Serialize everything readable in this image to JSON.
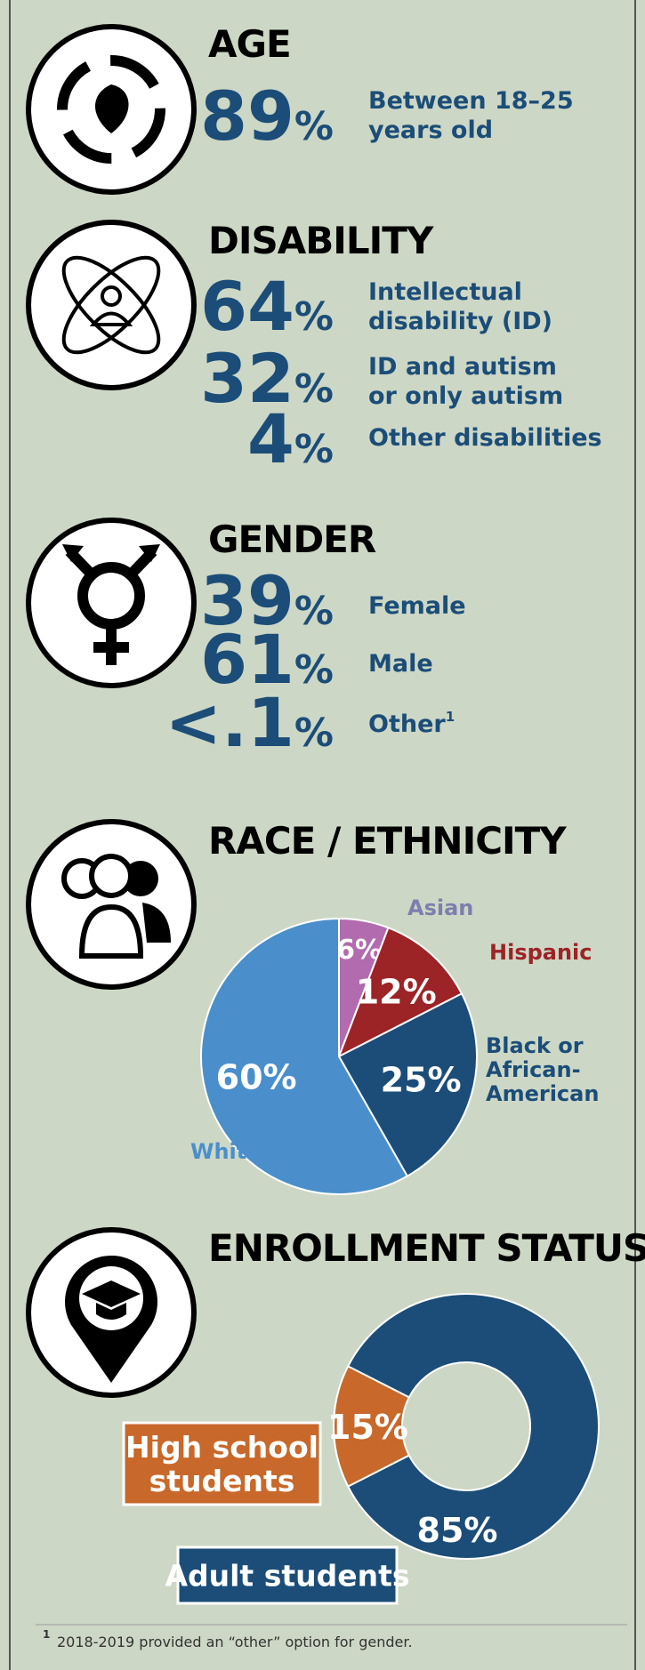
{
  "age": {
    "title": "AGE",
    "stats": [
      {
        "number": "89",
        "unit": "%",
        "label_lines": [
          "Between 18–25",
          "years old"
        ]
      }
    ]
  },
  "disability": {
    "title": "DISABILITY",
    "stats": [
      {
        "number": "64",
        "unit": "%",
        "label_lines": [
          "Intellectual",
          "disability (ID)"
        ]
      },
      {
        "number": "32",
        "unit": "%",
        "label_lines": [
          "ID and autism",
          "or only autism"
        ]
      },
      {
        "number": "4",
        "unit": "%",
        "label_lines": [
          "Other disabilities"
        ]
      }
    ]
  },
  "gender": {
    "title": "GENDER",
    "stats": [
      {
        "number": "39",
        "unit": "%",
        "label_lines": [
          "Female"
        ]
      },
      {
        "number": "61",
        "unit": "%",
        "label_lines": [
          "Male"
        ]
      },
      {
        "number": "<.1",
        "unit": "%",
        "label_lines": [
          "Other"
        ],
        "note": "1"
      }
    ]
  },
  "chart_data": [
    {
      "type": "pie",
      "title": "RACE / ETHNICITY",
      "categories": [
        "Asian",
        "Hispanic",
        "Black or African-American",
        "White"
      ],
      "category_lines": [
        [
          "Asian"
        ],
        [
          "Hispanic"
        ],
        [
          "Black or",
          "African-",
          "American"
        ],
        [
          "White"
        ]
      ],
      "values": [
        6,
        12,
        25,
        60
      ],
      "value_labels": [
        "6%",
        "12%",
        "25%",
        "60%"
      ],
      "colors": [
        "#b36bb0",
        "#9c2326",
        "#1b4d78",
        "#4a8fcc"
      ],
      "label_colors": [
        "#7d7fae",
        "#9c2326",
        "#1b4d78",
        "#4a8fcc"
      ]
    },
    {
      "type": "donut",
      "title": "ENROLLMENT STATUS",
      "categories": [
        "High school students",
        "Adult students"
      ],
      "category_lines": [
        [
          "High school",
          "students"
        ],
        [
          "Adult students"
        ]
      ],
      "values": [
        15,
        85
      ],
      "value_labels": [
        "15%",
        "85%"
      ],
      "colors": [
        "#c8682a",
        "#1b4d78"
      ]
    }
  ],
  "footnote": {
    "mark": "1",
    "text": "2018-2019 provided an “other” option for gender."
  }
}
